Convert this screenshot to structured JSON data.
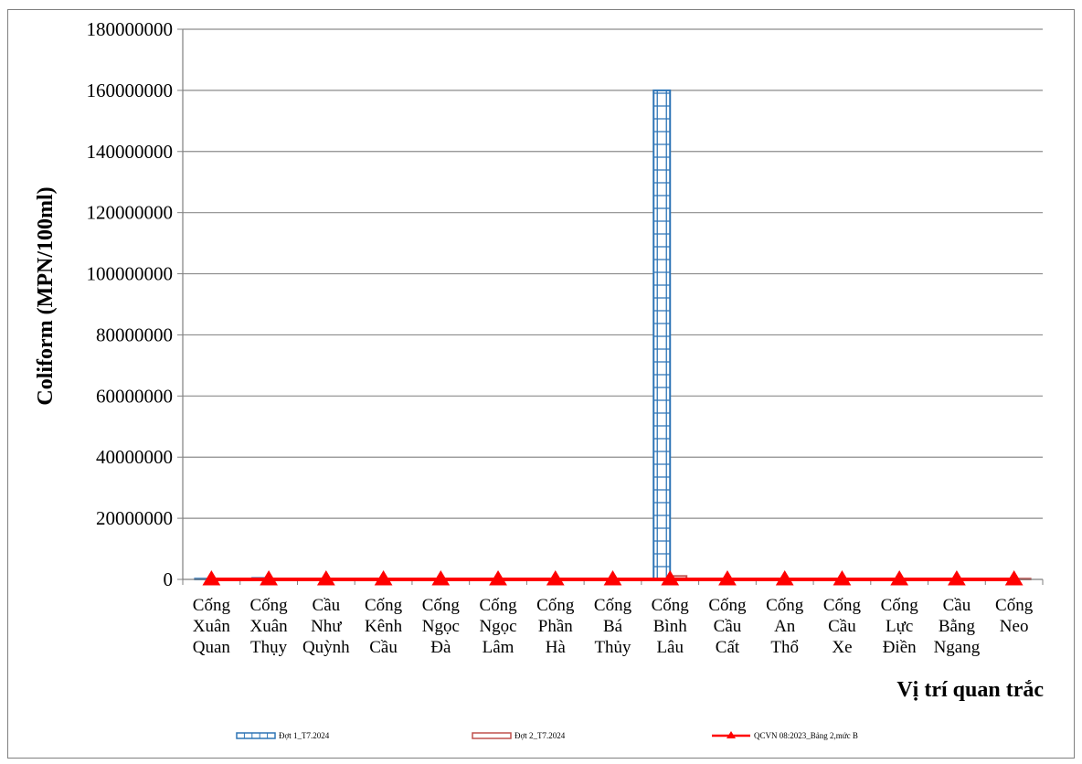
{
  "chart_data": {
    "type": "bar",
    "ylabel": "Coliform (MPN/100ml)",
    "xlabel": "Vị trí quan trắc",
    "ylim": [
      0,
      180000000
    ],
    "yticks": [
      0,
      20000000,
      40000000,
      60000000,
      80000000,
      100000000,
      120000000,
      140000000,
      160000000,
      180000000
    ],
    "ytick_labels": [
      "0",
      "20000000",
      "40000000",
      "60000000",
      "80000000",
      "100000000",
      "120000000",
      "140000000",
      "160000000",
      "180000000"
    ],
    "grid": true,
    "legend_position": "bottom",
    "categories": [
      [
        "Cống",
        "Xuân",
        "Quan"
      ],
      [
        "Cống",
        "Xuân",
        "Thụy"
      ],
      [
        "Cầu",
        "Như",
        "Quỳnh"
      ],
      [
        "Cống",
        "Kênh",
        "Cầu"
      ],
      [
        "Cống",
        "Ngọc",
        "Đà"
      ],
      [
        "Cống",
        "Ngọc",
        "Lâm"
      ],
      [
        "Cống",
        "Phần",
        "Hà"
      ],
      [
        "Cống",
        "Bá",
        "Thủy"
      ],
      [
        "Cống",
        "Bình",
        "Lâu"
      ],
      [
        "Cống",
        "Cầu",
        "Cất"
      ],
      [
        "Cống",
        "An",
        "Thổ"
      ],
      [
        "Cống",
        "Cầu",
        "Xe"
      ],
      [
        "Cống",
        "Lực",
        "Điền"
      ],
      [
        "Cầu",
        "Bằng",
        "Ngang"
      ],
      [
        "Cống",
        "Neo"
      ]
    ],
    "series": [
      {
        "name": "Đợt 1_T7.2024",
        "type": "bar",
        "color": "#2e75b6",
        "values": [
          240000,
          460000,
          150000,
          240000,
          93000,
          150000,
          240000,
          93000,
          160000000,
          150000,
          93000,
          240000,
          150000,
          93000,
          43000
        ]
      },
      {
        "name": "Đợt 2_T7.2024",
        "type": "bar",
        "color": "#c0504d",
        "values": [
          150000,
          240000,
          93000,
          150000,
          46000,
          93000,
          150000,
          46000,
          1100000,
          93000,
          46000,
          150000,
          93000,
          46000,
          24000
        ]
      },
      {
        "name": "QCVN 08:2023_Bảng 2,mức B",
        "type": "line",
        "color": "#ff0000",
        "marker": "triangle",
        "values": [
          10000,
          10000,
          10000,
          10000,
          10000,
          10000,
          10000,
          10000,
          10000,
          10000,
          10000,
          10000,
          10000,
          10000,
          10000
        ]
      }
    ]
  }
}
